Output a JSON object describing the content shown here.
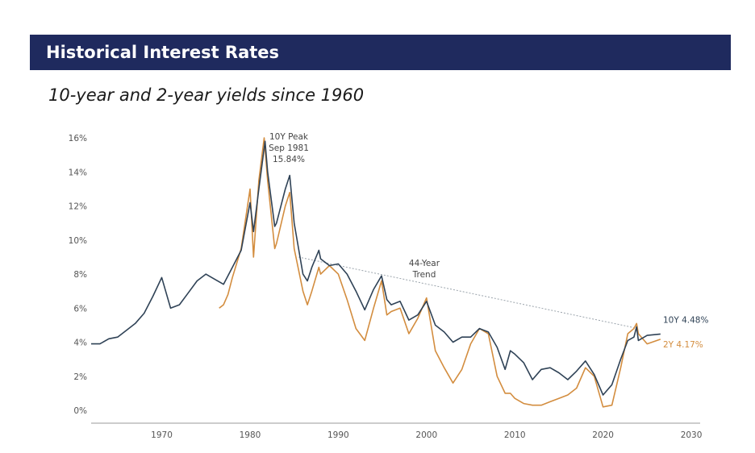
{
  "header": {
    "title": "Historical Interest Rates",
    "subtitle": "10-year and 2-year yields since 1960"
  },
  "colors": {
    "banner": "#1f2a5e",
    "ten_year": "#2f4256",
    "two_year": "#d38d3f",
    "trend": "#9aa3ab",
    "axis_text": "#555555"
  },
  "chart_data": {
    "type": "line",
    "title": "",
    "xlabel": "",
    "ylabel": "",
    "xlim": [
      1962,
      2031
    ],
    "ylim": [
      0,
      17
    ],
    "y_ticks": [
      {
        "value": 0,
        "label": "0%"
      },
      {
        "value": 2,
        "label": "2%"
      },
      {
        "value": 4,
        "label": "4%"
      },
      {
        "value": 6,
        "label": "6%"
      },
      {
        "value": 8,
        "label": "8%"
      },
      {
        "value": 10,
        "label": "10%"
      },
      {
        "value": 12,
        "label": "12%"
      },
      {
        "value": 14,
        "label": "14%"
      },
      {
        "value": 16,
        "label": "16%"
      }
    ],
    "x_ticks": [
      {
        "value": 1970,
        "label": "1970"
      },
      {
        "value": 1980,
        "label": "1980"
      },
      {
        "value": 1990,
        "label": "1990"
      },
      {
        "value": 2000,
        "label": "2000"
      },
      {
        "value": 2010,
        "label": "2010"
      },
      {
        "value": 2020,
        "label": "2020"
      },
      {
        "value": 2030,
        "label": "2030"
      }
    ],
    "grid": false,
    "series": [
      {
        "name": "10Y",
        "end_label": "10Y 4.48%",
        "points": [
          [
            1962,
            3.9
          ],
          [
            1963,
            3.9
          ],
          [
            1964,
            4.2
          ],
          [
            1965,
            4.3
          ],
          [
            1966,
            4.7
          ],
          [
            1967,
            5.1
          ],
          [
            1968,
            5.7
          ],
          [
            1969,
            6.7
          ],
          [
            1970,
            7.8
          ],
          [
            1970.5,
            6.9
          ],
          [
            1971,
            6.0
          ],
          [
            1972,
            6.2
          ],
          [
            1973,
            6.9
          ],
          [
            1974,
            7.6
          ],
          [
            1975,
            8.0
          ],
          [
            1976,
            7.7
          ],
          [
            1977,
            7.4
          ],
          [
            1978,
            8.4
          ],
          [
            1979,
            9.4
          ],
          [
            1980,
            12.2
          ],
          [
            1980.4,
            10.5
          ],
          [
            1981.0,
            13.0
          ],
          [
            1981.7,
            15.8
          ],
          [
            1982,
            14.0
          ],
          [
            1982.8,
            10.8
          ],
          [
            1983,
            11.0
          ],
          [
            1984,
            13.0
          ],
          [
            1984.5,
            13.8
          ],
          [
            1985,
            11.0
          ],
          [
            1986,
            8.0
          ],
          [
            1986.5,
            7.6
          ],
          [
            1987,
            8.4
          ],
          [
            1987.8,
            9.4
          ],
          [
            1988,
            8.9
          ],
          [
            1989,
            8.5
          ],
          [
            1990,
            8.6
          ],
          [
            1991,
            8.0
          ],
          [
            1992,
            7.0
          ],
          [
            1993,
            5.9
          ],
          [
            1994,
            7.1
          ],
          [
            1994.9,
            7.9
          ],
          [
            1995.5,
            6.5
          ],
          [
            1996,
            6.2
          ],
          [
            1997,
            6.4
          ],
          [
            1998,
            5.3
          ],
          [
            1999,
            5.6
          ],
          [
            2000,
            6.4
          ],
          [
            2001,
            5.0
          ],
          [
            2002,
            4.6
          ],
          [
            2003,
            4.0
          ],
          [
            2004,
            4.3
          ],
          [
            2005,
            4.3
          ],
          [
            2006,
            4.8
          ],
          [
            2007,
            4.6
          ],
          [
            2008,
            3.7
          ],
          [
            2008.9,
            2.4
          ],
          [
            2009.5,
            3.5
          ],
          [
            2010,
            3.3
          ],
          [
            2011,
            2.8
          ],
          [
            2012,
            1.8
          ],
          [
            2013,
            2.4
          ],
          [
            2014,
            2.5
          ],
          [
            2015,
            2.2
          ],
          [
            2016,
            1.8
          ],
          [
            2017,
            2.3
          ],
          [
            2018,
            2.9
          ],
          [
            2019,
            2.1
          ],
          [
            2020,
            0.9
          ],
          [
            2021,
            1.5
          ],
          [
            2022,
            3.0
          ],
          [
            2022.8,
            4.1
          ],
          [
            2023.5,
            4.3
          ],
          [
            2023.8,
            4.9
          ],
          [
            2024,
            4.1
          ],
          [
            2025,
            4.4
          ],
          [
            2026.5,
            4.48
          ]
        ]
      },
      {
        "name": "2Y",
        "end_label": "2Y 4.17%",
        "points": [
          [
            1976.5,
            6.0
          ],
          [
            1977,
            6.2
          ],
          [
            1977.5,
            6.8
          ],
          [
            1978,
            7.8
          ],
          [
            1979,
            9.5
          ],
          [
            1980,
            13.0
          ],
          [
            1980.4,
            9.0
          ],
          [
            1981.0,
            13.5
          ],
          [
            1981.6,
            16.0
          ],
          [
            1982,
            13.5
          ],
          [
            1982.8,
            9.5
          ],
          [
            1983,
            9.8
          ],
          [
            1984,
            12.0
          ],
          [
            1984.5,
            12.8
          ],
          [
            1985,
            9.5
          ],
          [
            1986,
            7.0
          ],
          [
            1986.5,
            6.2
          ],
          [
            1987,
            7.0
          ],
          [
            1987.8,
            8.4
          ],
          [
            1988,
            8.0
          ],
          [
            1989,
            8.5
          ],
          [
            1990,
            8.0
          ],
          [
            1991,
            6.5
          ],
          [
            1992,
            4.8
          ],
          [
            1993,
            4.1
          ],
          [
            1994,
            6.0
          ],
          [
            1994.9,
            7.6
          ],
          [
            1995.5,
            5.6
          ],
          [
            1996,
            5.8
          ],
          [
            1997,
            6.0
          ],
          [
            1998,
            4.5
          ],
          [
            1999,
            5.4
          ],
          [
            2000,
            6.6
          ],
          [
            2001,
            3.5
          ],
          [
            2002,
            2.5
          ],
          [
            2003,
            1.6
          ],
          [
            2004,
            2.4
          ],
          [
            2005,
            3.9
          ],
          [
            2006,
            4.8
          ],
          [
            2007,
            4.5
          ],
          [
            2008,
            2.0
          ],
          [
            2008.9,
            1.0
          ],
          [
            2009.5,
            1.0
          ],
          [
            2010,
            0.7
          ],
          [
            2011,
            0.4
          ],
          [
            2012,
            0.3
          ],
          [
            2013,
            0.3
          ],
          [
            2014,
            0.5
          ],
          [
            2015,
            0.7
          ],
          [
            2016,
            0.9
          ],
          [
            2017,
            1.3
          ],
          [
            2018,
            2.5
          ],
          [
            2019,
            2.0
          ],
          [
            2020,
            0.2
          ],
          [
            2021,
            0.3
          ],
          [
            2022,
            2.5
          ],
          [
            2022.8,
            4.5
          ],
          [
            2023.5,
            4.8
          ],
          [
            2023.8,
            5.1
          ],
          [
            2024,
            4.5
          ],
          [
            2025,
            3.9
          ],
          [
            2026.5,
            4.17
          ]
        ]
      }
    ],
    "annotations": [
      {
        "lines": [
          "10Y Peak",
          "Sep 1981",
          "15.84%"
        ],
        "x": 1981.7,
        "y": 15.84
      },
      {
        "lines": [
          "44-Year",
          "Trend"
        ],
        "x": 1999.8,
        "y": 8.0
      }
    ],
    "trend_line": {
      "from": [
        1985.5,
        9.0
      ],
      "to": [
        2024.0,
        4.8
      ]
    }
  }
}
